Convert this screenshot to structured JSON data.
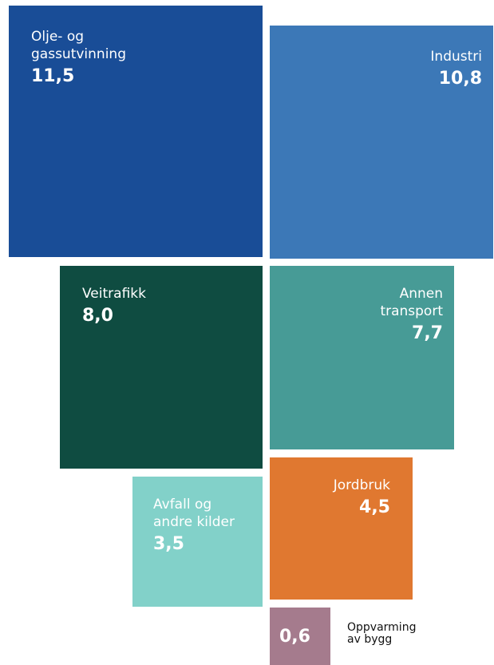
{
  "chart_data": {
    "type": "treemap",
    "title": "",
    "items": [
      {
        "label": "Olje- og\ngassutvinning",
        "value": "11,5",
        "value_num": 11.5,
        "color": "#194d97"
      },
      {
        "label": "Industri",
        "value": "10,8",
        "value_num": 10.8,
        "color": "#3c78b7"
      },
      {
        "label": "Veitrafikk",
        "value": "8,0",
        "value_num": 8.0,
        "color": "#0f4c41"
      },
      {
        "label": "Annen\ntransport",
        "value": "7,7",
        "value_num": 7.7,
        "color": "#479b96"
      },
      {
        "label": "Jordbruk",
        "value": "4,5",
        "value_num": 4.5,
        "color": "#e07830"
      },
      {
        "label": "Avfall og\nandre kilder",
        "value": "3,5",
        "value_num": 3.5,
        "color": "#82d1c9"
      },
      {
        "label": "Oppvarming\nav bygg",
        "value": "0,6",
        "value_num": 0.6,
        "color": "#a57b8d"
      }
    ]
  }
}
